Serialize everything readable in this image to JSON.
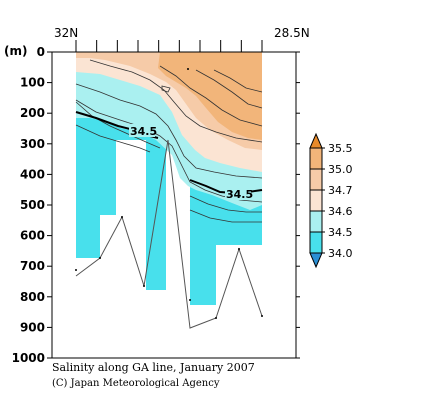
{
  "chart_data": {
    "type": "heatmap",
    "title": "Salinity along GA line, January 2007",
    "credit": "(C) Japan Meteorological Agency",
    "ylabel": "(m)",
    "x_left_label": "32N",
    "x_right_label": "28.5N",
    "ylim": [
      0,
      1000
    ],
    "y_reversed": true,
    "y_ticks": [
      "0",
      "100",
      "200",
      "300",
      "400",
      "500",
      "600",
      "700",
      "800",
      "900",
      "1000"
    ],
    "colorbar_levels": [
      "35.5",
      "35.0",
      "34.7",
      "34.6",
      "34.5",
      "34.0"
    ],
    "colorbar_colors": [
      "#e88a2a",
      "#f2b57a",
      "#f6cba8",
      "#fbe4d3",
      "#aaf0f0",
      "#48e0ec",
      "#2a8fd4"
    ],
    "contour_labels": [
      "34.5",
      "34.5"
    ],
    "station_count": 10,
    "max_depths": [
      730,
      690,
      540,
      760,
      290,
      905,
      860,
      650,
      860
    ],
    "colors": {
      "frame": "#000000",
      "ocean_fill": "#ffffff"
    }
  }
}
